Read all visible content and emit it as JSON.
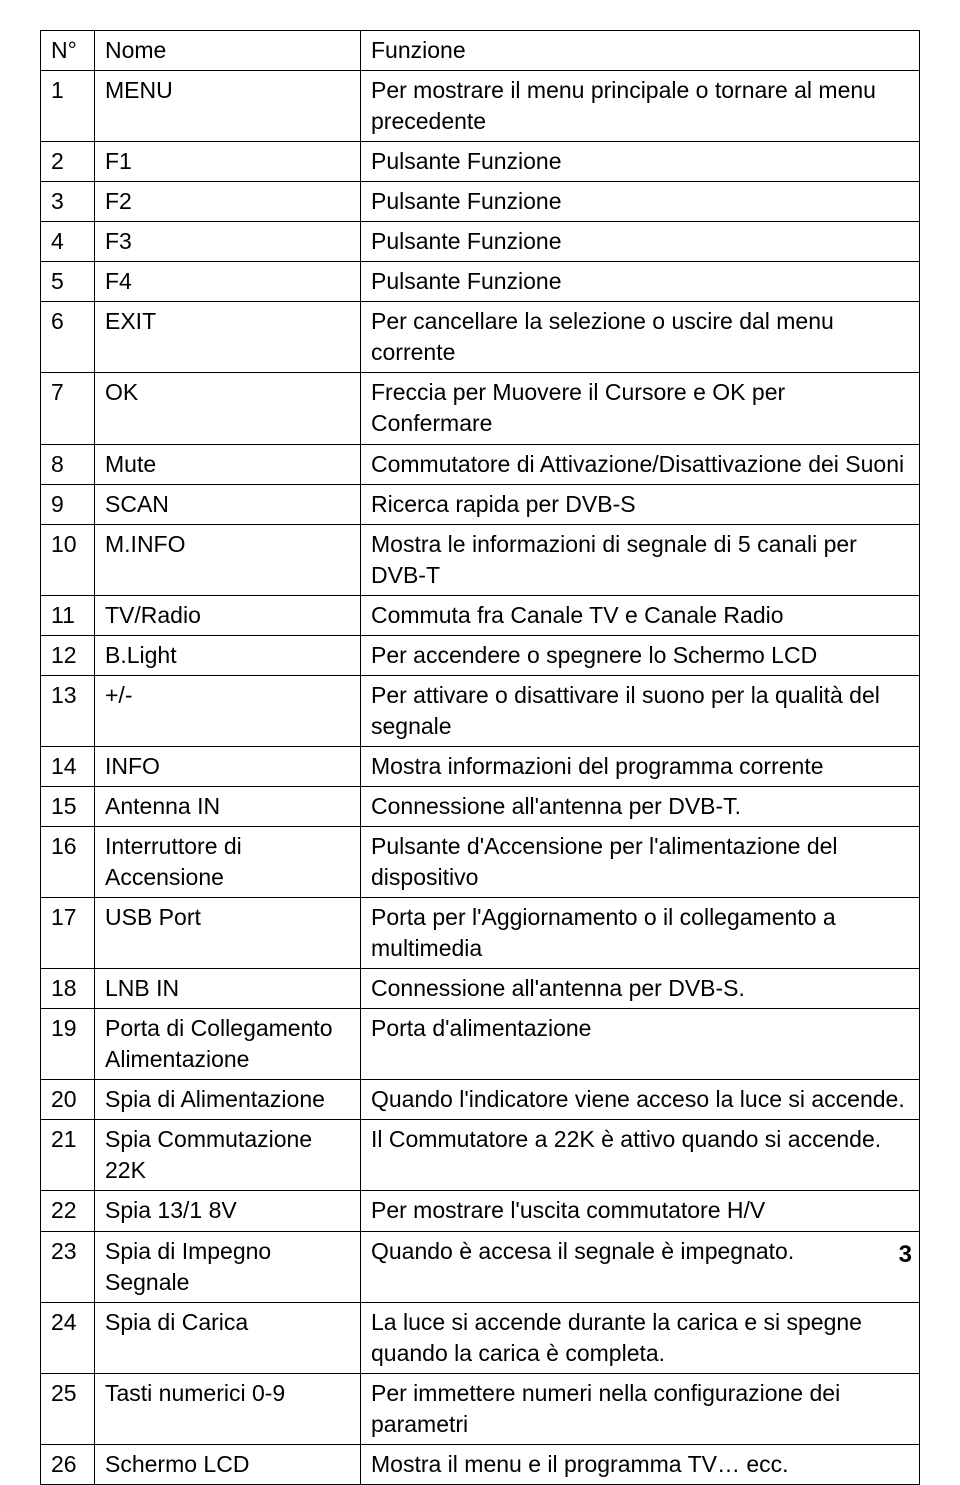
{
  "table": {
    "headers": [
      "N°",
      "Nome",
      "Funzione"
    ],
    "rows": [
      [
        "1",
        "MENU",
        "Per mostrare il menu principale o tornare al menu precedente"
      ],
      [
        "2",
        "F1",
        "Pulsante Funzione"
      ],
      [
        "3",
        "F2",
        "Pulsante Funzione"
      ],
      [
        "4",
        "F3",
        "Pulsante Funzione"
      ],
      [
        "5",
        "F4",
        "Pulsante Funzione"
      ],
      [
        "6",
        "EXIT",
        "Per cancellare la selezione o uscire dal menu corrente"
      ],
      [
        "7",
        "OK",
        "Freccia per Muovere il Cursore e OK per Confermare"
      ],
      [
        "8",
        "Mute",
        "Commutatore di Attivazione/Disattivazione dei Suoni"
      ],
      [
        "9",
        "SCAN",
        "Ricerca rapida per DVB-S"
      ],
      [
        "10",
        "M.INFO",
        "Mostra le informazioni di segnale di 5 canali per DVB-T"
      ],
      [
        "11",
        "TV/Radio",
        "Commuta fra Canale TV e Canale Radio"
      ],
      [
        "12",
        "B.Light",
        "Per accendere o spegnere lo Schermo LCD"
      ],
      [
        "13",
        "+/-",
        "Per attivare o disattivare il suono per la qualità del segnale"
      ],
      [
        "14",
        "INFO",
        "Mostra informazioni del programma corrente"
      ],
      [
        "15",
        "Antenna IN",
        "Connessione all'antenna per DVB-T."
      ],
      [
        "16",
        "Interruttore di Accensione",
        "Pulsante d'Accensione per l'alimentazione del dispositivo"
      ],
      [
        "17",
        "USB Port",
        "Porta per l'Aggiornamento o il collegamento a multimedia"
      ],
      [
        "18",
        "LNB IN",
        "Connessione all'antenna per DVB-S."
      ],
      [
        "19",
        "Porta di Collegamento Alimentazione",
        "Porta d'alimentazione"
      ],
      [
        "20",
        "Spia di Alimentazione",
        "Quando l'indicatore viene acceso la luce si accende."
      ],
      [
        "21",
        "Spia Commutazione 22K",
        "Il Commutatore a 22K è attivo quando si accende."
      ],
      [
        "22",
        "Spia 13/1 8V",
        "Per mostrare l'uscita commutatore H/V"
      ],
      [
        "23",
        "Spia di Impegno Segnale",
        "Quando è accesa il segnale è impegnato."
      ],
      [
        "24",
        "Spia di Carica",
        "La luce si accende durante la carica e si spegne quando la carica è completa."
      ],
      [
        "25",
        "Tasti numerici 0-9",
        "Per immettere numeri nella configurazione dei parametri"
      ],
      [
        "26",
        "Schermo LCD",
        "Mostra il menu e il programma TV… ecc."
      ]
    ]
  },
  "page_number": "3",
  "colors": {
    "text": "#000000",
    "background": "#ffffff",
    "border": "#000000"
  }
}
